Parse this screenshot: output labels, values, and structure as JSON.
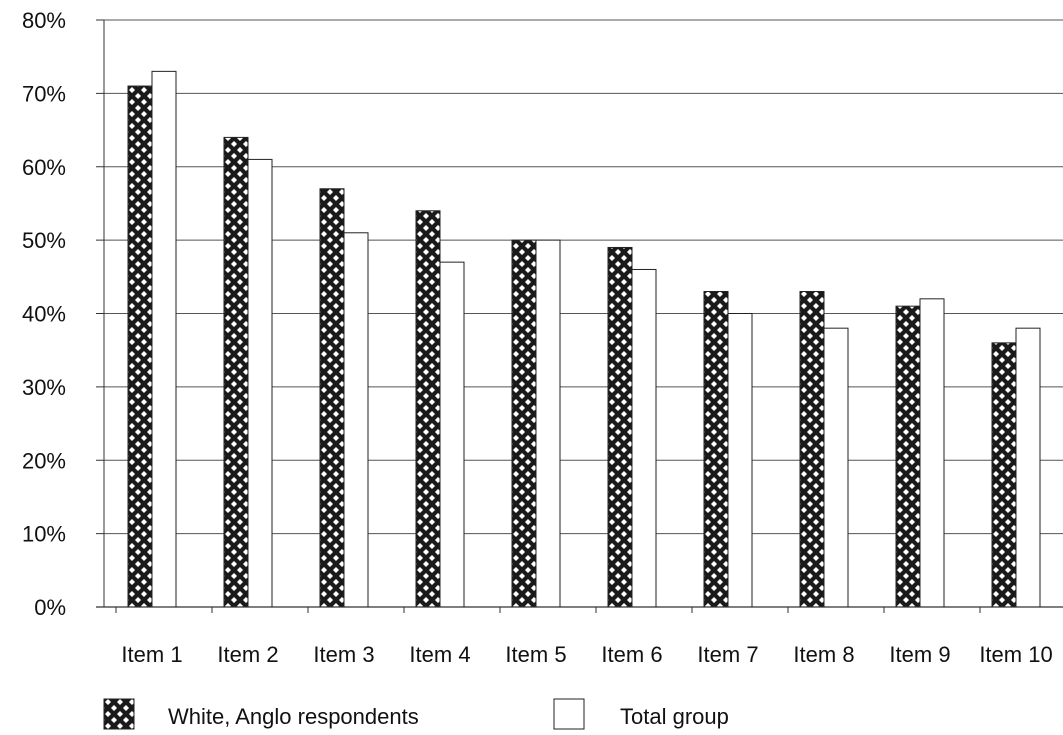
{
  "chart_data": {
    "type": "bar",
    "title": "",
    "xlabel": "",
    "ylabel": "",
    "ylim": [
      0,
      80
    ],
    "y_tick_step": 10,
    "y_tick_suffix": "%",
    "grid": true,
    "legend_position": "bottom",
    "categories": [
      "Item 1",
      "Item 2",
      "Item 3",
      "Item 4",
      "Item 5",
      "Item 6",
      "Item 7",
      "Item 8",
      "Item 9",
      "Item 10"
    ],
    "series": [
      {
        "name": "White, Anglo respondents",
        "pattern": "crosshatch",
        "color": "#1a1a1a",
        "values": [
          71,
          64,
          57,
          54,
          50,
          49,
          43,
          43,
          41,
          36
        ]
      },
      {
        "name": "Total group",
        "pattern": "solid",
        "color": "#ffffff",
        "values": [
          73,
          61,
          51,
          47,
          50,
          46,
          40,
          38,
          42,
          38
        ]
      }
    ]
  }
}
